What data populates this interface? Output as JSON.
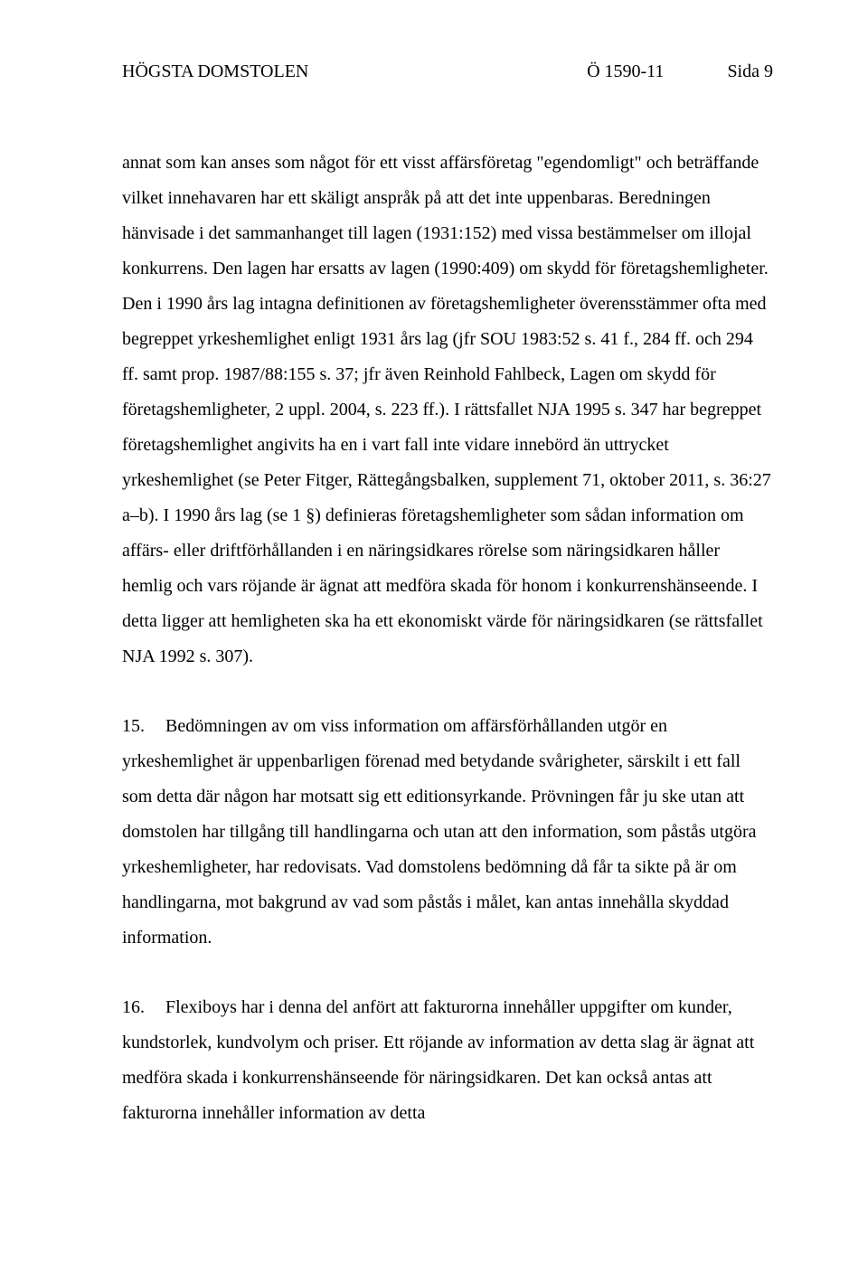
{
  "header": {
    "court": "HÖGSTA DOMSTOLEN",
    "case_no": "Ö 1590-11",
    "page": "Sida 9"
  },
  "paragraphs": {
    "p1": "annat som kan anses som något för ett visst affärsföretag \"egendomligt\" och beträffande vilket innehavaren har ett skäligt anspråk på att det inte uppenbaras. Beredningen hänvisade i det sammanhanget till lagen (1931:152) med vissa bestämmelser om illojal konkurrens. Den lagen har ersatts av lagen (1990:409) om skydd för företagshemligheter. Den i 1990 års lag intagna definitionen av företagshemligheter överensstämmer ofta med begreppet yrkeshemlighet enligt 1931 års lag (jfr SOU 1983:52 s. 41 f., 284 ff. och 294 ff. samt prop. 1987/88:155 s. 37; jfr även Reinhold Fahlbeck, Lagen om skydd för företagshemligheter, 2 uppl. 2004, s. 223 ff.). I rättsfallet NJA 1995 s. 347 har begreppet företagshemlighet angivits ha en i vart fall inte vidare innebörd än uttrycket yrkeshemlighet (se Peter Fitger, Rättegångsbalken, supplement 71, oktober 2011, s. 36:27 a–b). I 1990 års lag (se 1 §) definieras företagshemligheter som sådan information om affärs- eller driftförhållanden i en näringsidkares rörelse som näringsidkaren håller hemlig och vars röjande är ägnat att medföra skada för honom i konkurrenshänseende. I detta ligger att hemligheten ska ha ett ekonomiskt värde för näringsidkaren (se rättsfallet NJA 1992 s. 307).",
    "p2_num": "15.",
    "p2": "Bedömningen av om viss information om affärsförhållanden utgör en yrkeshemlighet är uppenbarligen förenad med betydande svårigheter, särskilt i ett fall som detta där någon har motsatt sig ett editionsyrkande. Prövningen får ju ske utan att domstolen har tillgång till handlingarna och utan att den information, som påstås utgöra yrkeshemligheter, har redovisats. Vad domstolens bedömning då får ta sikte på är om handlingarna, mot bakgrund av vad som påstås i målet, kan antas innehålla skyddad information.",
    "p3_num": "16.",
    "p3": "Flexiboys har i denna del anfört att fakturorna innehåller uppgifter om kunder, kundstorlek, kundvolym och priser. Ett röjande av information av detta slag är ägnat att medföra skada i konkurrenshänseende för näringsidkaren. Det kan också antas att fakturorna innehåller information av detta"
  }
}
